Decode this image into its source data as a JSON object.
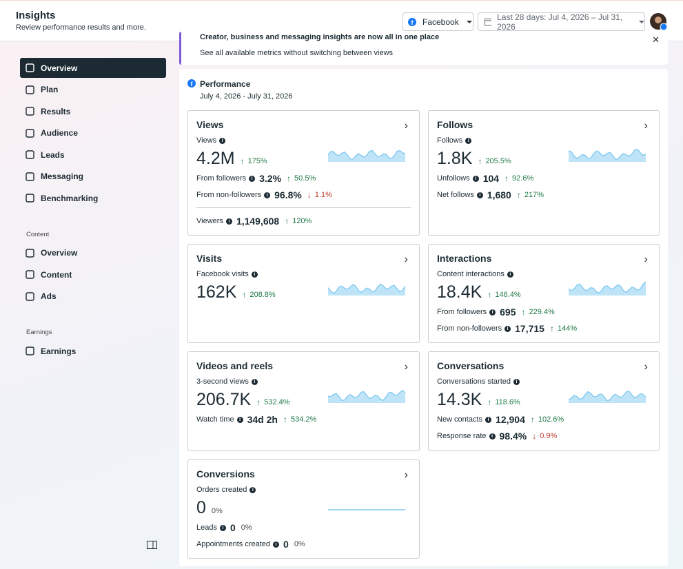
{
  "header": {
    "title": "Insights",
    "subtitle": "Review performance results and more.",
    "platform": "Facebook",
    "date_range": "Last 28 days: Jul 4, 2026 – Jul 31, 2026"
  },
  "sidebar": {
    "items": [
      "Overview",
      "Plan",
      "Results",
      "Audience",
      "Leads",
      "Messaging",
      "Benchmarking"
    ],
    "sections": [
      {
        "title": "Content",
        "items": [
          "Overview",
          "Content",
          "Ads"
        ]
      },
      {
        "title": "Earnings",
        "items": [
          "Earnings"
        ]
      }
    ]
  },
  "banner": {
    "title": "Creator, business and messaging insights are now all in one place",
    "text": "See all available metrics without switching between views"
  },
  "performance": {
    "title": "Performance",
    "dates": "July 4, 2026 - July 31, 2026",
    "cards": [
      {
        "title": "Views",
        "main_label": "Views",
        "main_value": "4.2M",
        "main_change": "175%",
        "direction": "up",
        "rows": [
          {
            "label": "From followers",
            "value": "3.2%",
            "change": "50.5%",
            "direction": "up"
          },
          {
            "label": "From non-followers",
            "value": "96.8%",
            "change": "1.1%",
            "direction": "down"
          }
        ],
        "footer_rows": [
          {
            "label": "Viewers",
            "value": "1,149,608",
            "change": "120%",
            "direction": "up"
          }
        ]
      },
      {
        "title": "Follows",
        "main_label": "Follows",
        "main_value": "1.8K",
        "main_change": "205.5%",
        "direction": "up",
        "rows": [
          {
            "label": "Unfollows",
            "value": "104",
            "change": "92.6%",
            "direction": "up"
          },
          {
            "label": "Net follows",
            "value": "1,680",
            "change": "217%",
            "direction": "up"
          }
        ]
      },
      {
        "title": "Visits",
        "main_label": "Facebook visits",
        "main_value": "162K",
        "main_change": "208.8%",
        "direction": "up",
        "rows": []
      },
      {
        "title": "Interactions",
        "main_label": "Content interactions",
        "main_value": "18.4K",
        "main_change": "146.4%",
        "direction": "up",
        "rows": [
          {
            "label": "From followers",
            "value": "695",
            "change": "229.4%",
            "direction": "up"
          },
          {
            "label": "From non-followers",
            "value": "17,715",
            "change": "144%",
            "direction": "up"
          }
        ]
      },
      {
        "title": "Videos and reels",
        "main_label": "3-second views",
        "main_value": "206.7K",
        "main_change": "532.4%",
        "direction": "up",
        "rows": [
          {
            "label": "Watch time",
            "value": "34d 2h",
            "change": "534.2%",
            "direction": "up"
          }
        ]
      },
      {
        "title": "Conversations",
        "main_label": "Conversations started",
        "main_value": "14.3K",
        "main_change": "118.6%",
        "direction": "up",
        "rows": [
          {
            "label": "New contacts",
            "value": "12,904",
            "change": "102.6%",
            "direction": "up"
          },
          {
            "label": "Response rate",
            "value": "98.4%",
            "change": "0.9%",
            "direction": "down"
          }
        ]
      },
      {
        "title": "Conversions",
        "main_label": "Orders created",
        "main_value": "0",
        "main_change": "0%",
        "direction": "none",
        "rows": [
          {
            "label": "Leads",
            "value": "0",
            "change": "0%",
            "direction": "none"
          },
          {
            "label": "Appointments created",
            "value": "0",
            "change": "0%",
            "direction": "none"
          }
        ]
      }
    ]
  }
}
